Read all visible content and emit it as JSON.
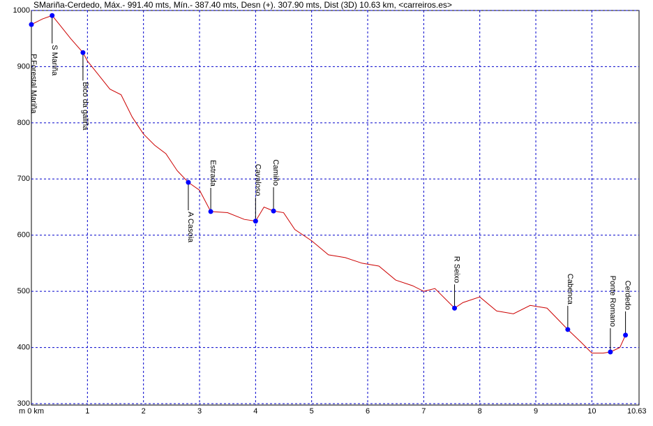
{
  "chart_data": {
    "type": "line",
    "title": "SMariña-Cerdedo, Máx.- 991.40 mts, Mín.- 387.40 mts, Desn (+). 307.90 mts, Dist (3D) 10.63 km, <carreiros.es>",
    "x": [
      0,
      0.2,
      0.37,
      0.5,
      0.7,
      0.92,
      1.0,
      1.2,
      1.4,
      1.6,
      1.8,
      2.0,
      2.2,
      2.4,
      2.6,
      2.8,
      3.0,
      3.2,
      3.5,
      3.8,
      4.0,
      4.15,
      4.32,
      4.5,
      4.7,
      5.0,
      5.3,
      5.6,
      5.9,
      6.2,
      6.5,
      6.8,
      7.0,
      7.2,
      7.55,
      7.7,
      8.0,
      8.3,
      8.6,
      8.9,
      9.2,
      9.57,
      9.8,
      10.0,
      10.2,
      10.33,
      10.5,
      10.6,
      10.63
    ],
    "series": [
      {
        "color": "#cc0000",
        "values": [
          975,
          985,
          991,
          975,
          950,
          925,
          910,
          885,
          860,
          850,
          810,
          780,
          760,
          745,
          715,
          694,
          680,
          642,
          640,
          628,
          625,
          650,
          643,
          640,
          610,
          590,
          565,
          560,
          550,
          545,
          520,
          510,
          500,
          505,
          470,
          480,
          490,
          465,
          460,
          475,
          470,
          432,
          410,
          390,
          390,
          392,
          400,
          422,
          420
        ]
      }
    ],
    "points": [
      {
        "label": "P.Forestal Mariña",
        "x": 0,
        "y": 975,
        "side": "below"
      },
      {
        "label": "S Mariña",
        "x": 0.37,
        "y": 991,
        "side": "below"
      },
      {
        "label": "Bico da galiña",
        "x": 0.92,
        "y": 925,
        "side": "below"
      },
      {
        "label": "A Casoia",
        "x": 2.8,
        "y": 694,
        "side": "below"
      },
      {
        "label": "Estrada",
        "x": 3.2,
        "y": 642,
        "side": "above"
      },
      {
        "label": "Cavaloso",
        "x": 4.0,
        "y": 625,
        "side": "above"
      },
      {
        "label": "Camiño",
        "x": 4.32,
        "y": 643,
        "side": "above"
      },
      {
        "label": "R Seixo",
        "x": 7.55,
        "y": 470,
        "side": "above"
      },
      {
        "label": "Cabenca",
        "x": 9.57,
        "y": 432,
        "side": "above"
      },
      {
        "label": "Ponte Romano",
        "x": 10.33,
        "y": 392,
        "side": "above"
      },
      {
        "label": "Cerdedo",
        "x": 10.6,
        "y": 422,
        "side": "above"
      }
    ],
    "point_color": "#0000ff",
    "xlim": [
      0,
      10.63
    ],
    "ylim": [
      300,
      1000
    ],
    "xticks": [
      {
        "value": 0,
        "label": "m 0 km"
      },
      1,
      2,
      3,
      4,
      5,
      6,
      7,
      8,
      9,
      10,
      10.63
    ],
    "yticks": [
      300,
      400,
      500,
      600,
      700,
      800,
      900,
      1000
    ],
    "grid": true
  }
}
